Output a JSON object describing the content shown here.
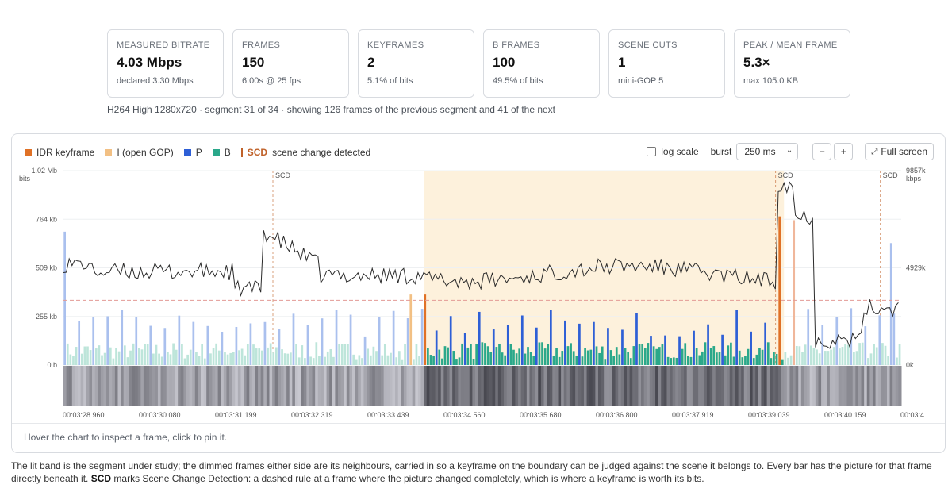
{
  "stats": [
    {
      "label": "MEASURED BITRATE",
      "value": "4.03 Mbps",
      "sub": "declared 3.30 Mbps"
    },
    {
      "label": "FRAMES",
      "value": "150",
      "sub": "6.00s @ 25 fps"
    },
    {
      "label": "KEYFRAMES",
      "value": "2",
      "sub": "5.1% of bits"
    },
    {
      "label": "B FRAMES",
      "value": "100",
      "sub": "49.5% of bits"
    },
    {
      "label": "SCENE CUTS",
      "value": "1",
      "sub": "mini-GOP 5"
    },
    {
      "label": "PEAK / MEAN FRAME",
      "value": "5.3×",
      "sub": "max 105.0 KB"
    }
  ],
  "meta": "H264 High 1280x720 · segment 31 of 34 · showing 126 frames of the previous segment and 41 of the next",
  "legend": {
    "idr": "IDR keyframe",
    "i_open": "I (open GOP)",
    "p": "P",
    "b": "B",
    "scd": "SCD",
    "scd_text": "scene change detected"
  },
  "controls": {
    "log_scale": "log scale",
    "burst_label": "burst",
    "burst_value": "250 ms",
    "minus": "−",
    "plus": "+",
    "fullscreen": "Full screen"
  },
  "colors": {
    "idr": "#e07126",
    "i_open": "#f2c084",
    "p": "#2e5fd6",
    "b": "#2aa88a",
    "band": "#fdf1dc",
    "scd": "#c0622a"
  },
  "chart_data": {
    "type": "bar",
    "y_left": {
      "label": "bits",
      "ticks": [
        "1.02 Mb",
        "764 kb",
        "509 kb",
        "255 kb",
        "0 b"
      ],
      "range": [
        0,
        1020000
      ]
    },
    "y_right": {
      "label": "kbps",
      "ticks": [
        "9857k",
        "4929k",
        "0k"
      ],
      "range": [
        0,
        9857
      ]
    },
    "x_ticks": [
      "00:03:28.960",
      "00:03:30.080",
      "00:03:31.199",
      "00:03:32.319",
      "00:03:33.439",
      "00:03:34.560",
      "00:03:35.680",
      "00:03:36.800",
      "00:03:37.919",
      "00:03:39.039",
      "00:03:40.159",
      "00:03:4"
    ],
    "scd_label": "SCD",
    "mean_line_bits": 340000
  },
  "hint": "Hover the chart to inspect a frame, click to pin it.",
  "footer": {
    "text1": "The lit band is the segment under study; the dimmed frames either side are its neighbours, carried in so a keyframe on the boundary can be judged against the scene it belongs to. Every bar has the picture for that frame directly beneath it.",
    "scd": "SCD",
    "text2": "marks Scene Change Detection: a dashed rule at a frame where the picture changed completely, which is where a keyframe is worth its bits."
  }
}
